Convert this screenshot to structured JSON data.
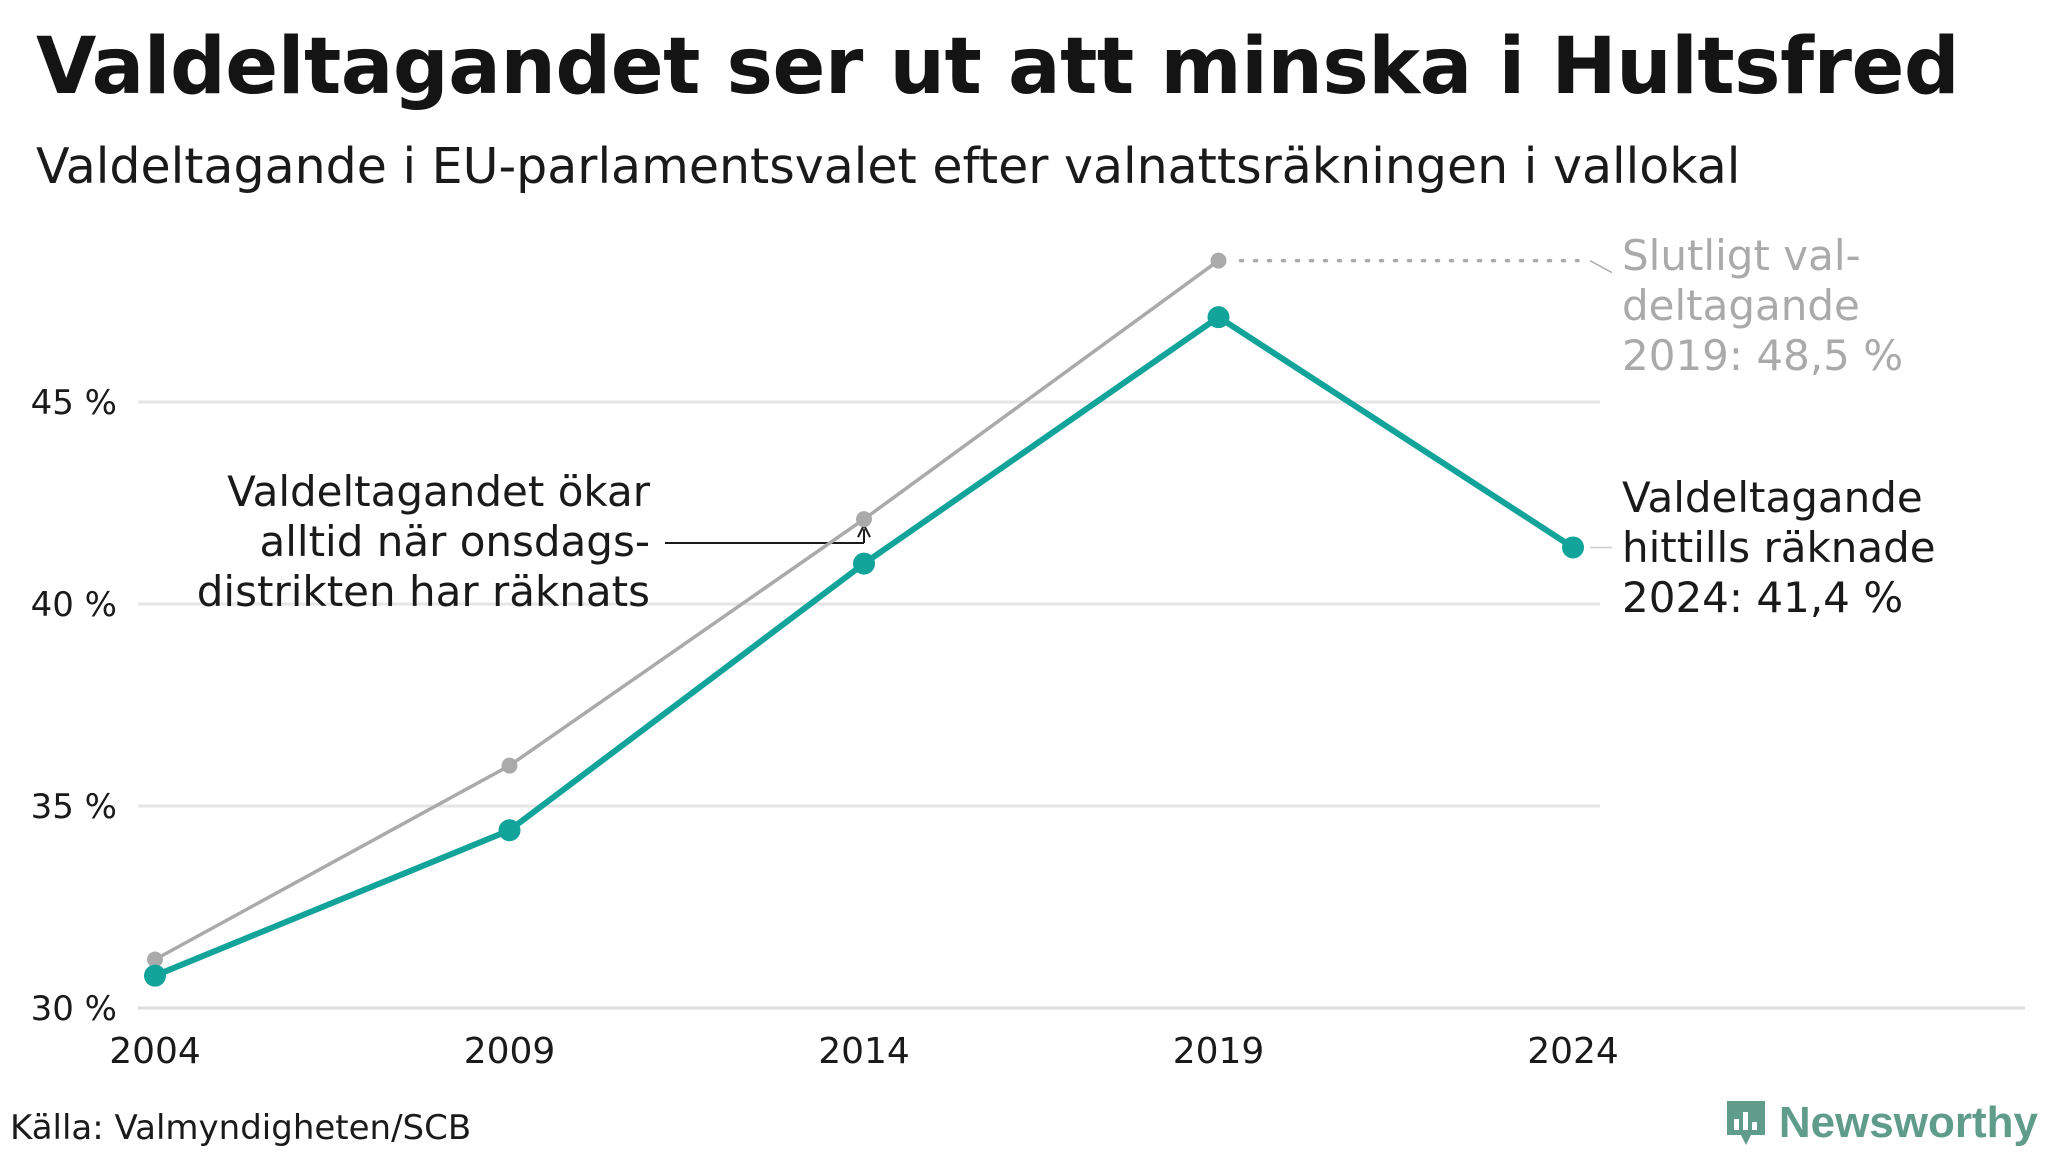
{
  "header": {
    "title": "Valdeltagandet ser ut att minska i Hultsfred",
    "subtitle": "Valdeltagande i EU-parlamentsvalet efter valnattsräkningen i vallokal"
  },
  "footer": {
    "source": "Källa: Valmyndigheten/SCB",
    "brand": "Newsworthy"
  },
  "colors": {
    "preliminary": "#12a39a",
    "final": "#aaaaaa",
    "grid": "#e6e6e6",
    "text": "#1a1a1a",
    "brand": "#5f9c89"
  },
  "annotations": {
    "final_label": [
      "Slutligt val-",
      "deltagande",
      "2019: 48,5 %"
    ],
    "current_label": [
      "Valdeltagande",
      "hittills räknade",
      "2024: 41,4 %"
    ],
    "note": [
      "Valdeltagandet ökar",
      "alltid när onsdags-",
      "distrikten har räknats"
    ]
  },
  "chart_data": {
    "type": "line",
    "title": "Valdeltagandet ser ut att minska i Hultsfred",
    "subtitle": "Valdeltagande i EU-parlamentsvalet efter valnattsräkningen i vallokal",
    "x": [
      2004,
      2009,
      2014,
      2019,
      2024
    ],
    "ylim": [
      30,
      48.5
    ],
    "yticks": [
      30,
      35,
      40,
      45
    ],
    "ytick_labels": [
      "30 %",
      "35 %",
      "40 %",
      "45 %"
    ],
    "xtick_labels": [
      "2004",
      "2009",
      "2014",
      "2019",
      "2024"
    ],
    "grid": true,
    "series": [
      {
        "key": "final",
        "values": [
          31.2,
          36.0,
          42.1,
          48.5,
          null
        ]
      },
      {
        "key": "preliminary",
        "values": [
          30.8,
          34.4,
          41.0,
          47.1,
          41.4
        ]
      }
    ]
  }
}
